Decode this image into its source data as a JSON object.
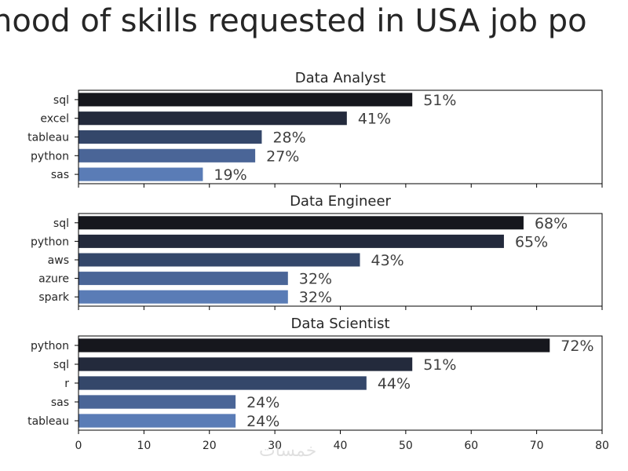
{
  "suptitle": "hood of skills requested in USA job po",
  "watermark": "خمسات",
  "chart_data": [
    {
      "type": "bar",
      "orientation": "horizontal",
      "title": "Data Analyst",
      "categories": [
        "sql",
        "excel",
        "tableau",
        "python",
        "sas"
      ],
      "values": [
        51,
        41,
        28,
        27,
        19
      ],
      "xlim": [
        0,
        80
      ]
    },
    {
      "type": "bar",
      "orientation": "horizontal",
      "title": "Data Engineer",
      "categories": [
        "sql",
        "python",
        "aws",
        "azure",
        "spark"
      ],
      "values": [
        68,
        65,
        43,
        32,
        32
      ],
      "xlim": [
        0,
        80
      ]
    },
    {
      "type": "bar",
      "orientation": "horizontal",
      "title": "Data Scientist",
      "categories": [
        "python",
        "sql",
        "r",
        "sas",
        "tableau"
      ],
      "values": [
        72,
        51,
        44,
        24,
        24
      ],
      "xlim": [
        0,
        80
      ]
    }
  ],
  "x_ticks": [
    0,
    10,
    20,
    30,
    40,
    50,
    60,
    70,
    80
  ],
  "label_suffix": "%",
  "colors": {
    "scale": [
      "#16171d",
      "#232a3c",
      "#34476a",
      "#4a6597",
      "#5a7cb6"
    ],
    "text": "#262626",
    "axis": "#000000"
  }
}
